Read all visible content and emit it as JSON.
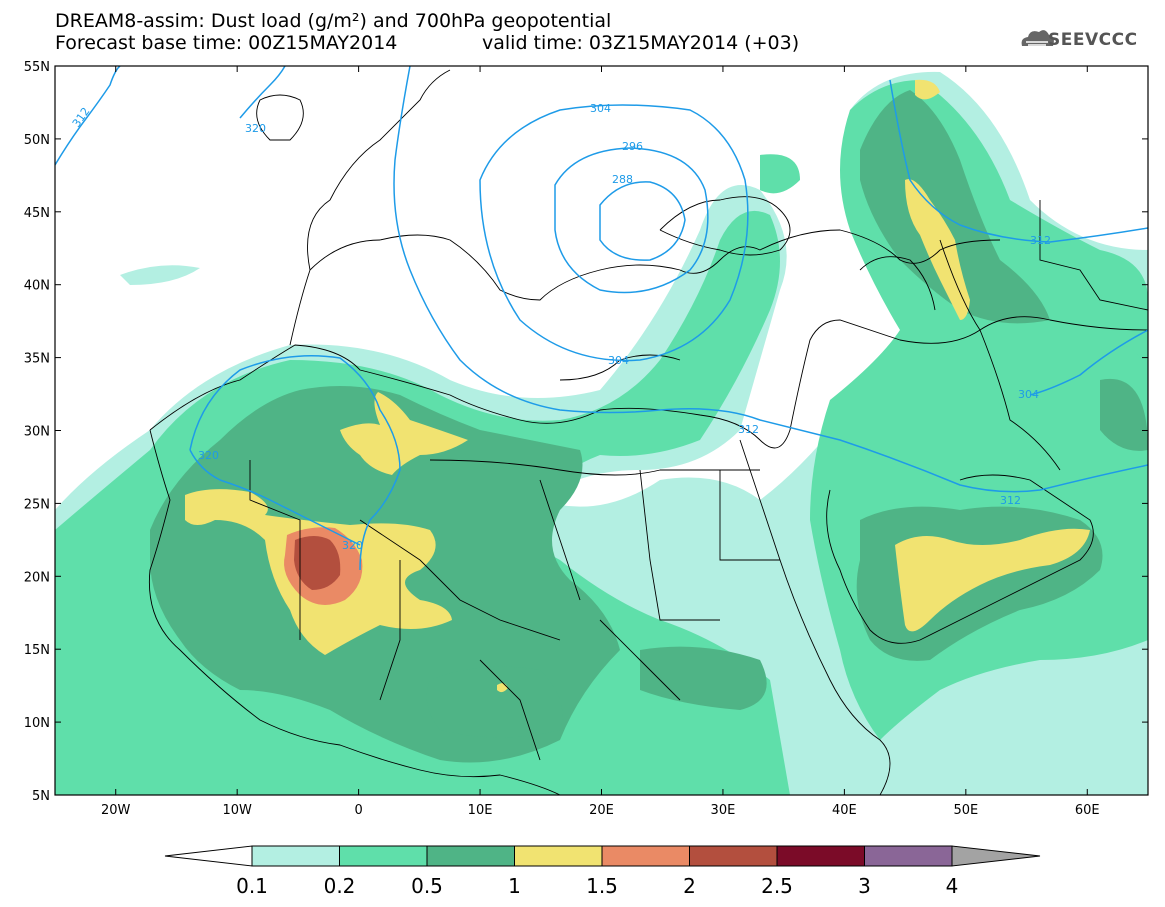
{
  "title": {
    "line1": "DREAM8-assim: Dust load (g/m²) and 700hPa geopotential",
    "line2": "Forecast base time: 00Z15MAY2014",
    "line3": "valid time: 03Z15MAY2014 (+03)"
  },
  "logo": {
    "text": "SEEVCCC",
    "icon": "cloud-icon"
  },
  "map": {
    "lon_range": [
      -25,
      65
    ],
    "lat_range": [
      5,
      55
    ],
    "lon_ticks": [
      "20W",
      "10W",
      "0",
      "10E",
      "20E",
      "30E",
      "40E",
      "50E",
      "60E"
    ],
    "lat_ticks": [
      "5N",
      "10N",
      "15N",
      "20N",
      "25N",
      "30N",
      "35N",
      "40N",
      "45N",
      "50N",
      "55N"
    ],
    "contour_labels": [
      "312",
      "320",
      "304",
      "296",
      "288",
      "312",
      "320",
      "320",
      "312",
      "304",
      "312",
      "304"
    ]
  },
  "colors": {
    "level_0_1": "#b3efe2",
    "level_0_2": "#5fdfaa",
    "level_0_5": "#4fb486",
    "level_1": "#f1e371",
    "level_1_5": "#ea8a65",
    "level_2": "#b34f3e",
    "level_2_5": "#7b0b28",
    "level_3": "#8a6697",
    "level_4": "#a3a3a3",
    "contour": "#1e9be8"
  },
  "colorbar": {
    "labels": [
      "0.1",
      "0.2",
      "0.5",
      "1",
      "1.5",
      "2",
      "2.5",
      "3",
      "4"
    ],
    "colors": [
      "#b3efe2",
      "#5fdfaa",
      "#4fb486",
      "#f1e371",
      "#ea8a65",
      "#b34f3e",
      "#7b0b28",
      "#8a6697"
    ],
    "over_color": "#a3a3a3",
    "under_color": "#ffffff"
  }
}
